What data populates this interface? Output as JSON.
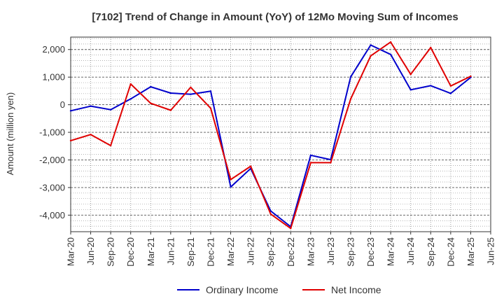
{
  "chart_data": {
    "type": "line",
    "title": "[7102]  Trend of Change in Amount (YoY) of 12Mo Moving Sum of Incomes",
    "xlabel": "",
    "ylabel": "Amount (million yen)",
    "categories": [
      "Mar-20",
      "Jun-20",
      "Sep-20",
      "Dec-20",
      "Mar-21",
      "Jun-21",
      "Sep-21",
      "Dec-21",
      "Mar-22",
      "Jun-22",
      "Sep-22",
      "Dec-22",
      "Mar-23",
      "Jun-23",
      "Sep-23",
      "Dec-23",
      "Mar-24",
      "Jun-24",
      "Sep-24",
      "Dec-24",
      "Mar-25",
      "Jun-25"
    ],
    "ylim": [
      -4600,
      2450
    ],
    "yticks": [
      -4000,
      -3000,
      -2000,
      -1000,
      0,
      1000,
      2000
    ],
    "ytick_labels": [
      "-4,000",
      "-3,000",
      "-2,000",
      "-1,000",
      "0",
      "1,000",
      "2,000"
    ],
    "grid": true,
    "legend_position": "bottom",
    "series": [
      {
        "name": "Ordinary Income",
        "color": "#0000cc",
        "values": [
          -220,
          -50,
          -180,
          210,
          650,
          420,
          380,
          490,
          -2980,
          -2310,
          -3850,
          -4420,
          -1830,
          -1990,
          1010,
          2160,
          1820,
          540,
          690,
          410,
          990,
          null
        ]
      },
      {
        "name": "Net Income",
        "color": "#e00000",
        "values": [
          -1300,
          -1080,
          -1480,
          750,
          50,
          -200,
          630,
          -130,
          -2710,
          -2230,
          -3960,
          -4480,
          -2100,
          -2100,
          210,
          1770,
          2270,
          1100,
          2070,
          680,
          1030,
          null
        ]
      }
    ]
  }
}
